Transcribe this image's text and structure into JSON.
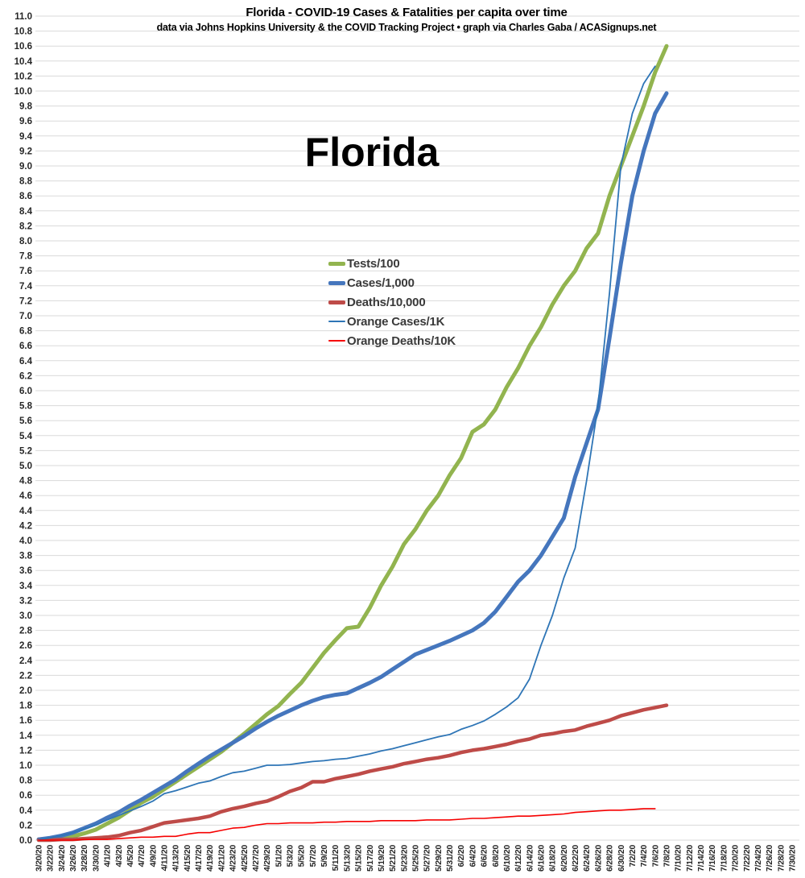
{
  "chart_data": {
    "type": "line",
    "title": "Florida - COVID-19 Cases & Fatalities per capita over time",
    "subtitle": "data via Johns Hopkins University & the COVID Tracking Project • graph via Charles Gaba / ACASignups.net",
    "big_label": "Florida",
    "ylim": [
      0,
      11.0
    ],
    "ytick_step": 0.2,
    "grid": "horizontal",
    "legend_position": "inside-left-center",
    "colors": {
      "grid": "#dadada",
      "axis_text": "#262626",
      "title_text": "#000000",
      "background": "#ffffff"
    },
    "x_tick_labels": [
      "3/20/20",
      "3/22/20",
      "3/24/20",
      "3/26/20",
      "3/28/20",
      "3/30/20",
      "4/1/20",
      "4/3/20",
      "4/5/20",
      "4/7/20",
      "4/9/20",
      "4/11/20",
      "4/13/20",
      "4/15/20",
      "4/17/20",
      "4/19/20",
      "4/21/20",
      "4/23/20",
      "4/25/20",
      "4/27/20",
      "4/29/20",
      "5/1/20",
      "5/3/20",
      "5/5/20",
      "5/7/20",
      "5/9/20",
      "5/11/20",
      "5/13/20",
      "5/15/20",
      "5/17/20",
      "5/19/20",
      "5/21/20",
      "5/23/20",
      "5/25/20",
      "5/27/20",
      "5/29/20",
      "5/31/20",
      "6/2/20",
      "6/4/20",
      "6/6/20",
      "6/8/20",
      "6/10/20",
      "6/12/20",
      "6/14/20",
      "6/16/20",
      "6/18/20",
      "6/20/20",
      "6/22/20",
      "6/24/20",
      "6/26/20",
      "6/28/20",
      "6/30/20",
      "7/2/20",
      "7/4/20",
      "7/6/20",
      "7/8/20",
      "7/10/20",
      "7/12/20",
      "7/14/20",
      "7/16/20",
      "7/18/20",
      "7/20/20",
      "7/22/20",
      "7/24/20",
      "7/26/20",
      "7/28/20",
      "7/30/20"
    ],
    "data_end_label": "7/8/20",
    "note": "series values align with the first 56 x tick labels (3/20/20 through 7/8/20); no data plotted after that date",
    "series": [
      {
        "name": "Tests/100",
        "color": "#92b44f",
        "stroke_width": 5,
        "legend_swatch_height": 5,
        "values": [
          0.01,
          0.02,
          0.03,
          0.05,
          0.09,
          0.14,
          0.22,
          0.3,
          0.4,
          0.5,
          0.58,
          0.68,
          0.78,
          0.88,
          0.98,
          1.08,
          1.18,
          1.3,
          1.42,
          1.55,
          1.68,
          1.79,
          1.95,
          2.1,
          2.3,
          2.5,
          2.67,
          2.83,
          2.85,
          3.1,
          3.4,
          3.65,
          3.95,
          4.15,
          4.4,
          4.6,
          4.87,
          5.1,
          5.45,
          5.55,
          5.75,
          6.05,
          6.3,
          6.6,
          6.85,
          7.15,
          7.4,
          7.6,
          7.9,
          8.1,
          8.6,
          9.0,
          9.4,
          9.8,
          10.25,
          10.6
        ]
      },
      {
        "name": "Cases/1,000",
        "color": "#4576bd",
        "stroke_width": 5,
        "legend_swatch_height": 5,
        "values": [
          0.01,
          0.03,
          0.06,
          0.1,
          0.16,
          0.22,
          0.3,
          0.37,
          0.46,
          0.54,
          0.63,
          0.72,
          0.81,
          0.92,
          1.02,
          1.12,
          1.21,
          1.3,
          1.39,
          1.49,
          1.58,
          1.66,
          1.73,
          1.8,
          1.86,
          1.91,
          1.94,
          1.96,
          2.03,
          2.1,
          2.18,
          2.28,
          2.38,
          2.48,
          2.54,
          2.6,
          2.66,
          2.73,
          2.8,
          2.9,
          3.05,
          3.25,
          3.45,
          3.6,
          3.8,
          4.05,
          4.3,
          4.85,
          5.3,
          5.75,
          6.7,
          7.7,
          8.6,
          9.2,
          9.7,
          9.97
        ]
      },
      {
        "name": "Deaths/10,000",
        "color": "#be4b48",
        "stroke_width": 4.5,
        "legend_swatch_height": 5,
        "values": [
          0.0,
          0.0,
          0.01,
          0.01,
          0.02,
          0.03,
          0.04,
          0.06,
          0.1,
          0.13,
          0.18,
          0.23,
          0.25,
          0.27,
          0.29,
          0.32,
          0.38,
          0.42,
          0.45,
          0.49,
          0.52,
          0.58,
          0.65,
          0.7,
          0.78,
          0.78,
          0.82,
          0.85,
          0.88,
          0.92,
          0.95,
          0.98,
          1.02,
          1.05,
          1.08,
          1.1,
          1.13,
          1.17,
          1.2,
          1.22,
          1.25,
          1.28,
          1.32,
          1.35,
          1.4,
          1.42,
          1.45,
          1.47,
          1.52,
          1.56,
          1.6,
          1.66,
          1.7,
          1.74,
          1.77,
          1.8
        ]
      },
      {
        "name": "Orange Cases/1K",
        "color": "#2e75b6",
        "stroke_width": 1.8,
        "legend_swatch_height": 2,
        "values": [
          0.01,
          0.03,
          0.06,
          0.1,
          0.15,
          0.2,
          0.27,
          0.33,
          0.39,
          0.45,
          0.52,
          0.62,
          0.66,
          0.71,
          0.76,
          0.79,
          0.85,
          0.9,
          0.92,
          0.96,
          1.0,
          1.0,
          1.01,
          1.03,
          1.05,
          1.06,
          1.08,
          1.09,
          1.12,
          1.15,
          1.19,
          1.22,
          1.26,
          1.3,
          1.34,
          1.38,
          1.41,
          1.48,
          1.53,
          1.59,
          1.68,
          1.78,
          1.9,
          2.15,
          2.6,
          3.0,
          3.5,
          3.9,
          4.8,
          5.8,
          7.3,
          9.0,
          9.7,
          10.1,
          10.33,
          null
        ]
      },
      {
        "name": "Orange Deaths/10K",
        "color": "#f60000",
        "stroke_width": 1.6,
        "legend_swatch_height": 2,
        "values": [
          0.0,
          0.0,
          0.0,
          0.0,
          0.01,
          0.01,
          0.01,
          0.02,
          0.03,
          0.04,
          0.04,
          0.05,
          0.05,
          0.08,
          0.1,
          0.1,
          0.13,
          0.16,
          0.17,
          0.2,
          0.22,
          0.22,
          0.23,
          0.23,
          0.23,
          0.24,
          0.24,
          0.25,
          0.25,
          0.25,
          0.26,
          0.26,
          0.26,
          0.26,
          0.27,
          0.27,
          0.27,
          0.28,
          0.29,
          0.29,
          0.3,
          0.31,
          0.32,
          0.32,
          0.33,
          0.34,
          0.35,
          0.37,
          0.38,
          0.39,
          0.4,
          0.4,
          0.41,
          0.42,
          0.42,
          null
        ]
      }
    ]
  }
}
